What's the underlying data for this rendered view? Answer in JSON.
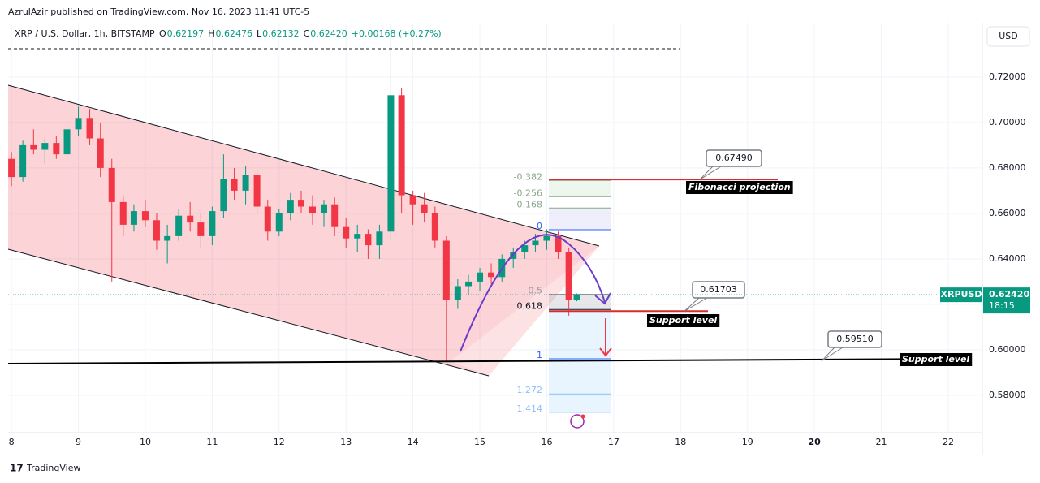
{
  "header": {
    "publisher": "AzrulAzir published on TradingView.com, Nov 16, 2023 11:41 UTC-5",
    "footer": "TradingView"
  },
  "chart_data": {
    "type": "candlestick",
    "symbol": "XRP / U.S. Dollar, 1h, BITSTAMP",
    "legend": [
      {
        "key": "O",
        "value": "0.62197"
      },
      {
        "key": "H",
        "value": "0.62476"
      },
      {
        "key": "L",
        "value": "0.62132"
      },
      {
        "key": "C",
        "value": "0.62420"
      }
    ],
    "change": "+0.00168 (+0.27%)",
    "currency": "USD",
    "x": [
      8.0,
      8.17,
      8.33,
      8.5,
      8.67,
      8.83,
      9.0,
      9.17,
      9.33,
      9.5,
      9.67,
      9.83,
      10.0,
      10.17,
      10.33,
      10.5,
      10.67,
      10.83,
      11.0,
      11.17,
      11.33,
      11.5,
      11.67,
      11.83,
      12.0,
      12.17,
      12.33,
      12.5,
      12.67,
      12.83,
      13.0,
      13.17,
      13.33,
      13.5,
      13.67,
      13.83,
      14.0,
      14.17,
      14.33,
      14.5,
      14.67,
      14.83,
      15.0,
      15.17,
      15.33,
      15.5,
      15.67,
      15.83,
      16.0,
      16.17,
      16.33,
      16.45
    ],
    "open": [
      0.684,
      0.676,
      0.69,
      0.688,
      0.691,
      0.686,
      0.697,
      0.702,
      0.693,
      0.68,
      0.665,
      0.655,
      0.661,
      0.657,
      0.648,
      0.65,
      0.659,
      0.656,
      0.65,
      0.661,
      0.675,
      0.67,
      0.677,
      0.663,
      0.652,
      0.66,
      0.666,
      0.663,
      0.66,
      0.664,
      0.654,
      0.649,
      0.651,
      0.646,
      0.652,
      0.712,
      0.668,
      0.664,
      0.66,
      0.648,
      0.622,
      0.628,
      0.63,
      0.634,
      0.632,
      0.64,
      0.643,
      0.646,
      0.648,
      0.65,
      0.643,
      0.62197
    ],
    "high": [
      0.687,
      0.692,
      0.697,
      0.693,
      0.694,
      0.699,
      0.707,
      0.706,
      0.7,
      0.684,
      0.668,
      0.664,
      0.666,
      0.66,
      0.655,
      0.662,
      0.665,
      0.66,
      0.663,
      0.686,
      0.68,
      0.681,
      0.679,
      0.666,
      0.662,
      0.669,
      0.67,
      0.668,
      0.666,
      0.667,
      0.658,
      0.655,
      0.653,
      0.655,
      0.7439,
      0.715,
      0.67,
      0.669,
      0.663,
      0.65,
      0.631,
      0.633,
      0.636,
      0.638,
      0.642,
      0.645,
      0.648,
      0.651,
      0.653,
      0.652,
      0.645,
      0.62476
    ],
    "low": [
      0.672,
      0.674,
      0.686,
      0.682,
      0.684,
      0.683,
      0.694,
      0.69,
      0.676,
      0.63,
      0.65,
      0.652,
      0.654,
      0.644,
      0.638,
      0.648,
      0.652,
      0.645,
      0.646,
      0.658,
      0.666,
      0.664,
      0.66,
      0.648,
      0.65,
      0.657,
      0.66,
      0.655,
      0.654,
      0.65,
      0.645,
      0.643,
      0.64,
      0.64,
      0.648,
      0.66,
      0.655,
      0.656,
      0.645,
      0.595,
      0.618,
      0.624,
      0.626,
      0.629,
      0.63,
      0.636,
      0.64,
      0.643,
      0.644,
      0.64,
      0.615,
      0.62132
    ],
    "close": [
      0.676,
      0.69,
      0.688,
      0.691,
      0.686,
      0.697,
      0.702,
      0.693,
      0.68,
      0.665,
      0.655,
      0.661,
      0.657,
      0.648,
      0.65,
      0.659,
      0.656,
      0.65,
      0.661,
      0.675,
      0.67,
      0.677,
      0.663,
      0.652,
      0.66,
      0.666,
      0.663,
      0.66,
      0.664,
      0.654,
      0.649,
      0.651,
      0.646,
      0.652,
      0.712,
      0.668,
      0.664,
      0.66,
      0.648,
      0.622,
      0.628,
      0.63,
      0.634,
      0.632,
      0.64,
      0.643,
      0.646,
      0.648,
      0.65,
      0.643,
      0.622,
      0.6242
    ],
    "up_color": "#089981",
    "down_color": "#f23645",
    "xlim": [
      7.95,
      22.51
    ],
    "xticks": [
      8,
      9,
      10,
      11,
      12,
      13,
      14,
      15,
      16,
      17,
      18,
      19,
      20,
      21,
      22
    ],
    "ylim": [
      0.5646,
      0.7439
    ],
    "yticks": [
      {
        "value": 0.58,
        "label": "0.58000"
      },
      {
        "value": 0.6,
        "label": "0.60000"
      },
      {
        "value": 0.62,
        "label": "0.62000"
      },
      {
        "value": 0.64,
        "label": "0.64000"
      },
      {
        "value": 0.66,
        "label": "0.66000"
      },
      {
        "value": 0.68,
        "label": "0.68000"
      },
      {
        "value": 0.7,
        "label": "0.70000"
      },
      {
        "value": 0.72,
        "label": "0.72000"
      }
    ],
    "grid": true,
    "last_price": {
      "value": 0.6242,
      "label": "0.62420",
      "ticker": "XRPUSD",
      "countdown": "18:15"
    },
    "fib_levels": [
      -0.382,
      -0.256,
      -0.168,
      0,
      0.5,
      0.618,
      1,
      1.272,
      1.414
    ],
    "annotations": [
      {
        "value": 0.6749,
        "label": "0.67490",
        "note": "Fibonacci projection"
      },
      {
        "value": 0.61703,
        "label": "0.61703",
        "note": "Support level"
      },
      {
        "value": 0.5951,
        "label": "0.59510",
        "note": "Support level"
      }
    ]
  }
}
